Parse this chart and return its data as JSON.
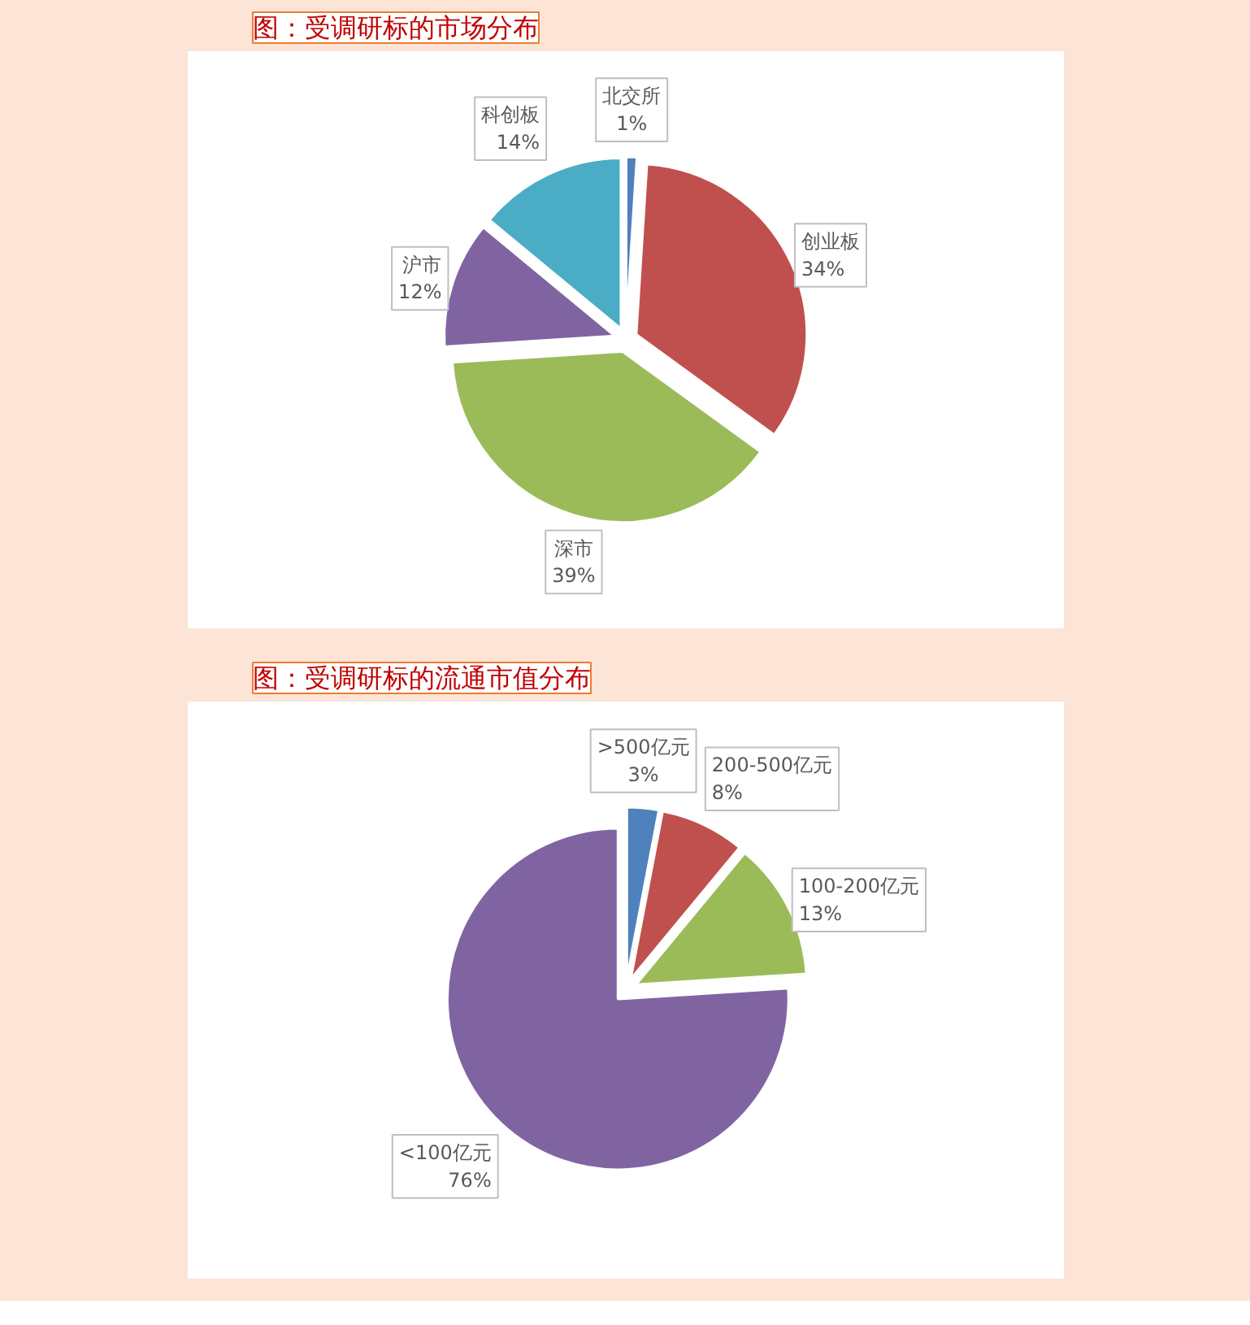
{
  "chart_data": [
    {
      "type": "pie",
      "title": "图：受调研标的市场分布",
      "categories": [
        "北交所",
        "创业板",
        "深市",
        "沪市",
        "科创板"
      ],
      "values": [
        1,
        34,
        39,
        12,
        14
      ],
      "value_labels": [
        "1%",
        "34%",
        "39%",
        "12%",
        "14%"
      ],
      "colors": [
        "#4f81bd",
        "#c0504d",
        "#9bbb59",
        "#8064a2",
        "#4bacc6"
      ]
    },
    {
      "type": "pie",
      "title": "图：受调研标的流通市值分布",
      "categories": [
        ">500亿元",
        "200-500亿元",
        "100-200亿元",
        "<100亿元"
      ],
      "values": [
        3,
        8,
        13,
        76
      ],
      "value_labels": [
        "3%",
        "8%",
        "13%",
        "76%"
      ],
      "colors": [
        "#4f81bd",
        "#c0504d",
        "#9bbb59",
        "#8064a2"
      ]
    }
  ]
}
